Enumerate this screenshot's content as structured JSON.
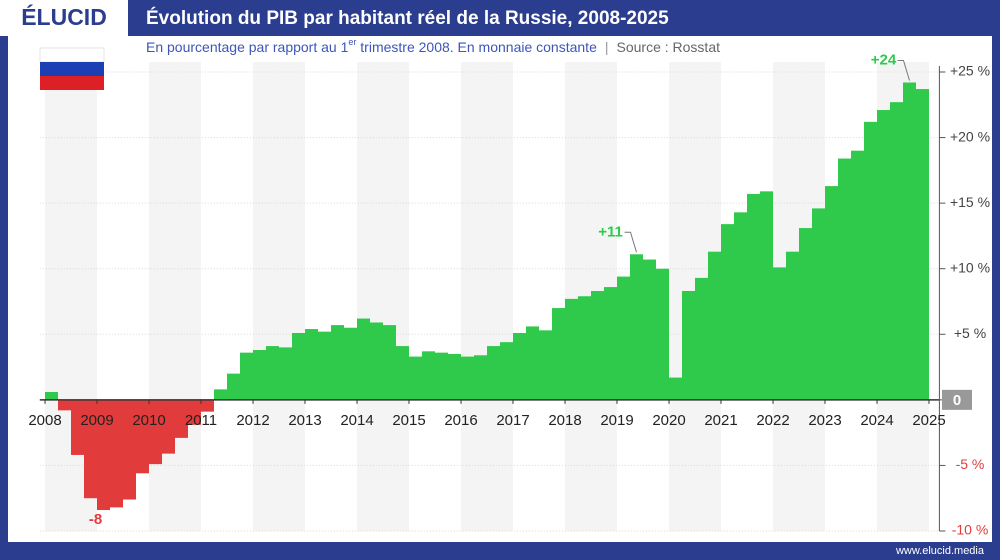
{
  "header": {
    "logo": "ÉLUCID",
    "subtitle_start": "En pourcentage par rapport au 1",
    "subtitle_sup": "er",
    "subtitle_end": " trimestre 2008. En monnaie constante",
    "separator": "|",
    "source": "Source : Rosstat",
    "footer": "www.elucid.media"
  },
  "chart_data": {
    "type": "bar",
    "title": "Évolution du PIB par habitant réel de la Russie, 2008-2025",
    "x": [
      2008,
      2008.25,
      2008.5,
      2008.75,
      2009,
      2009.25,
      2009.5,
      2009.75,
      2010,
      2010.25,
      2010.5,
      2010.75,
      2011,
      2011.25,
      2011.5,
      2011.75,
      2012,
      2012.25,
      2012.5,
      2012.75,
      2013,
      2013.25,
      2013.5,
      2013.75,
      2014,
      2014.25,
      2014.5,
      2014.75,
      2015,
      2015.25,
      2015.5,
      2015.75,
      2016,
      2016.25,
      2016.5,
      2016.75,
      2017,
      2017.25,
      2017.5,
      2017.75,
      2018,
      2018.25,
      2018.5,
      2018.75,
      2019,
      2019.25,
      2019.5,
      2019.75,
      2020,
      2020.25,
      2020.5,
      2020.75,
      2021,
      2021.25,
      2021.5,
      2021.75,
      2022,
      2022.25,
      2022.5,
      2022.75,
      2023,
      2023.25,
      2023.5,
      2023.75,
      2024,
      2024.25,
      2024.5,
      2024.75
    ],
    "values": [
      0.6,
      -0.8,
      -4.2,
      -7.5,
      -8.4,
      -8.2,
      -7.6,
      -5.6,
      -4.9,
      -4.1,
      -2.9,
      -1.9,
      -0.9,
      0.8,
      2.0,
      3.6,
      3.8,
      4.1,
      4.0,
      5.1,
      5.4,
      5.2,
      5.7,
      5.5,
      6.2,
      5.9,
      5.7,
      4.1,
      3.3,
      3.7,
      3.6,
      3.5,
      3.3,
      3.4,
      4.1,
      4.4,
      5.1,
      5.6,
      5.3,
      7.0,
      7.7,
      7.9,
      8.3,
      8.6,
      9.4,
      11.1,
      10.7,
      10.0,
      1.7,
      8.3,
      9.3,
      11.3,
      13.4,
      14.3,
      15.7,
      15.9,
      10.1,
      11.3,
      13.1,
      14.6,
      16.3,
      18.4,
      19.0,
      21.2,
      22.1,
      22.7,
      24.2,
      23.7
    ],
    "value_labels": [
      null,
      null,
      null,
      null,
      "-8",
      null,
      null,
      null,
      null,
      null,
      null,
      null,
      null,
      null,
      null,
      null,
      null,
      null,
      null,
      null,
      null,
      null,
      null,
      null,
      null,
      null,
      null,
      null,
      null,
      null,
      null,
      null,
      null,
      null,
      null,
      null,
      null,
      null,
      null,
      null,
      null,
      null,
      null,
      null,
      null,
      "+11",
      null,
      null,
      null,
      null,
      null,
      null,
      null,
      null,
      null,
      null,
      null,
      null,
      null,
      null,
      null,
      null,
      null,
      null,
      null,
      null,
      "+24",
      null
    ],
    "positive_color": "#2fc94b",
    "negative_color": "#e23b3b",
    "xlim": [
      2007.9,
      2025.2
    ],
    "xticks": [
      2008,
      2009,
      2010,
      2011,
      2012,
      2013,
      2014,
      2015,
      2016,
      2017,
      2018,
      2019,
      2020,
      2021,
      2022,
      2023,
      2024,
      2025
    ],
    "ylim": [
      -10,
      25
    ],
    "yticks": [
      {
        "value": -10,
        "label": "-10 %"
      },
      {
        "value": -5,
        "label": "-5 %"
      },
      0,
      {
        "value": 5,
        "label": "+5 %"
      },
      {
        "value": 10,
        "label": "+10 %"
      },
      {
        "value": 15,
        "label": "+15 %"
      },
      {
        "value": 20,
        "label": "+20 %"
      },
      {
        "value": 25,
        "label": "+25 %"
      }
    ],
    "grid": true
  }
}
